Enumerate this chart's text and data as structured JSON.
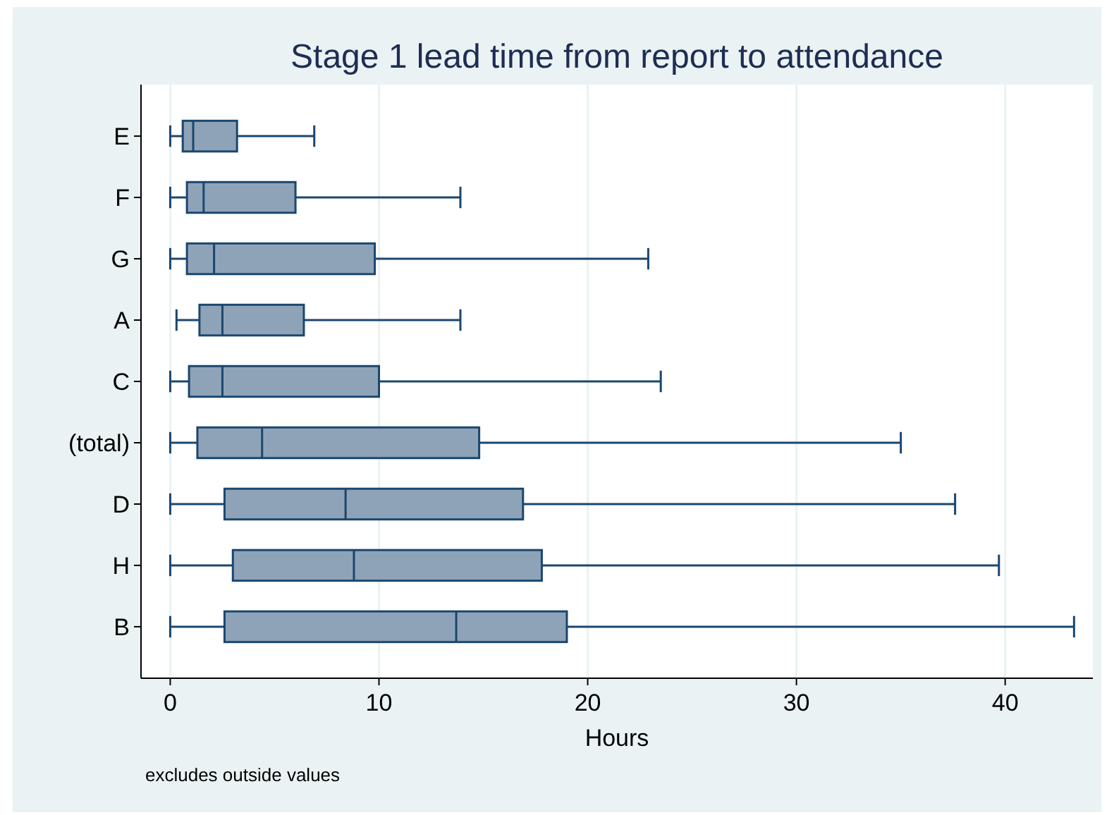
{
  "chart_data": {
    "type": "box",
    "orientation": "horizontal",
    "title": "Stage 1 lead time from report to attendance",
    "xlabel": "Hours",
    "annotations": [
      "excludes outside values"
    ],
    "categories": [
      "E",
      "F",
      "G",
      "A",
      "C",
      "(total)",
      "D",
      "H",
      "B"
    ],
    "boxes": [
      {
        "low": 0,
        "q1": 0.6,
        "median": 1.1,
        "q3": 3.2,
        "high": 6.9
      },
      {
        "low": 0,
        "q1": 0.8,
        "median": 1.6,
        "q3": 6,
        "high": 13.9
      },
      {
        "low": 0,
        "q1": 0.8,
        "median": 2.1,
        "q3": 9.8,
        "high": 22.9
      },
      {
        "low": 0.3,
        "q1": 1.4,
        "median": 2.5,
        "q3": 6.4,
        "high": 13.9
      },
      {
        "low": 0,
        "q1": 0.9,
        "median": 2.5,
        "q3": 10,
        "high": 23.5
      },
      {
        "low": 0,
        "q1": 1.3,
        "median": 4.4,
        "q3": 14.8,
        "high": 35
      },
      {
        "low": 0,
        "q1": 2.6,
        "median": 8.4,
        "q3": 16.9,
        "high": 37.6
      },
      {
        "low": 0,
        "q1": 3,
        "median": 8.8,
        "q3": 17.8,
        "high": 39.7
      },
      {
        "low": 0,
        "q1": 2.6,
        "median": 13.7,
        "q3": 19,
        "high": 43.3
      }
    ],
    "color": "#8fa3b8",
    "xlim": [
      -1.4,
      44.2
    ],
    "xticks": [
      0,
      10,
      20,
      30,
      40
    ],
    "grid": "x"
  }
}
